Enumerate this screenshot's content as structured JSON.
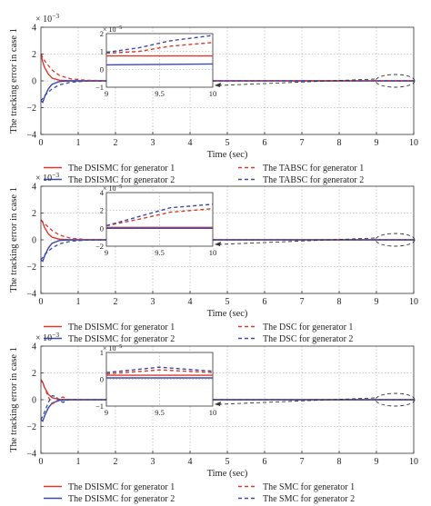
{
  "figure": {
    "ylabel": "The tracking error in case 1",
    "xlabel": "Time (sec)",
    "exponent_base": "× 10",
    "exponent_power": "−3"
  },
  "colors": {
    "generator1": "#d63a2f",
    "generator2": "#3b4aa8",
    "comparison1": "#d63a2f",
    "comparison2": "#3b4aa8",
    "axis": "#333333",
    "grid": "#9a9a9a"
  },
  "chart_data": [
    {
      "type": "line",
      "title": "",
      "xlabel": "Time (sec)",
      "ylabel": "The tracking error in case 1",
      "xlim": [
        0,
        10
      ],
      "ylim": [
        -4,
        4
      ],
      "y_scale_note": "× 10^−3",
      "xticks": [
        "0",
        "1",
        "2",
        "3",
        "4",
        "5",
        "6",
        "7",
        "8",
        "9",
        "10"
      ],
      "yticks": [
        "−4",
        "−2",
        "0",
        "2",
        "4"
      ],
      "grid": true,
      "legend": [
        "The DSISMC for generator 1",
        "The DSISMC for generator 2",
        "The TABSC for generator 1",
        "The TABSC for generator 2"
      ],
      "series": [
        {
          "name": "The DSISMC for generator 1",
          "style": "solid",
          "color": "generator1",
          "points": [
            [
              0,
              2.0
            ],
            [
              0.05,
              1.4
            ],
            [
              0.1,
              1.0
            ],
            [
              0.2,
              0.5
            ],
            [
              0.3,
              0.2
            ],
            [
              0.5,
              0.05
            ],
            [
              0.8,
              0.0
            ],
            [
              10,
              0.0
            ]
          ]
        },
        {
          "name": "The DSISMC for generator 2",
          "style": "solid",
          "color": "generator2",
          "points": [
            [
              0,
              -1.5
            ],
            [
              0.05,
              -1.6
            ],
            [
              0.1,
              -1.2
            ],
            [
              0.2,
              -0.6
            ],
            [
              0.3,
              -0.25
            ],
            [
              0.5,
              -0.05
            ],
            [
              0.8,
              0.0
            ],
            [
              10,
              0.0
            ]
          ]
        },
        {
          "name": "The TABSC for generator 1",
          "style": "dashed",
          "color": "comparison1",
          "points": [
            [
              0,
              2.0
            ],
            [
              0.1,
              1.5
            ],
            [
              0.3,
              0.8
            ],
            [
              0.5,
              0.4
            ],
            [
              0.8,
              0.15
            ],
            [
              1.2,
              0.05
            ],
            [
              2,
              0.0
            ],
            [
              10,
              0.0
            ]
          ]
        },
        {
          "name": "The TABSC for generator 2",
          "style": "dashed",
          "color": "comparison2",
          "points": [
            [
              0,
              -1.5
            ],
            [
              0.1,
              -1.1
            ],
            [
              0.3,
              -0.6
            ],
            [
              0.5,
              -0.3
            ],
            [
              0.8,
              -0.1
            ],
            [
              1.2,
              -0.03
            ],
            [
              2,
              0.0
            ],
            [
              10,
              0.0
            ]
          ]
        }
      ],
      "inset": {
        "xlim": [
          9,
          10
        ],
        "ylim": [
          -1,
          2
        ],
        "xticks": [
          "9",
          "9.5",
          "10"
        ],
        "yticks": [
          "−1",
          "0",
          "1",
          "2"
        ],
        "y_scale_note": "× 10^−5",
        "series": [
          {
            "name": "The DSISMC for generator 1",
            "style": "solid",
            "color": "generator1",
            "points": [
              [
                9,
                0.75
              ],
              [
                10,
                0.75
              ]
            ]
          },
          {
            "name": "The DSISMC for generator 2",
            "style": "solid",
            "color": "generator2",
            "points": [
              [
                9,
                0.25
              ],
              [
                10,
                0.3
              ]
            ]
          },
          {
            "name": "The TABSC for generator 1",
            "style": "dashed",
            "color": "comparison1",
            "points": [
              [
                9,
                0.9
              ],
              [
                9.3,
                1.0
              ],
              [
                9.6,
                1.3
              ],
              [
                10,
                1.5
              ]
            ]
          },
          {
            "name": "The TABSC for generator 2",
            "style": "dashed",
            "color": "comparison2",
            "points": [
              [
                9,
                0.95
              ],
              [
                9.3,
                1.2
              ],
              [
                9.6,
                1.6
              ],
              [
                10,
                1.9
              ]
            ]
          }
        ]
      }
    },
    {
      "type": "line",
      "title": "",
      "xlabel": "Time (sec)",
      "ylabel": "The tracking error in case 1",
      "xlim": [
        0,
        10
      ],
      "ylim": [
        -4,
        4
      ],
      "y_scale_note": "× 10^−3",
      "xticks": [
        "0",
        "1",
        "2",
        "3",
        "4",
        "5",
        "6",
        "7",
        "8",
        "9",
        "10"
      ],
      "yticks": [
        "−4",
        "−2",
        "0",
        "2",
        "4"
      ],
      "grid": true,
      "legend": [
        "The DSISMC for generator 1",
        "The DSISMC for generator 2",
        "The DSC for generator 1",
        "The DSC for generator 2"
      ],
      "series": [
        {
          "name": "The DSISMC for generator 1",
          "style": "solid",
          "color": "generator1",
          "points": [
            [
              0,
              1.5
            ],
            [
              0.05,
              1.3
            ],
            [
              0.1,
              0.9
            ],
            [
              0.2,
              0.45
            ],
            [
              0.3,
              0.2
            ],
            [
              0.5,
              0.05
            ],
            [
              0.8,
              0.0
            ],
            [
              10,
              0.0
            ]
          ]
        },
        {
          "name": "The DSISMC for generator 2",
          "style": "solid",
          "color": "generator2",
          "points": [
            [
              0,
              -1.5
            ],
            [
              0.05,
              -1.6
            ],
            [
              0.1,
              -1.2
            ],
            [
              0.2,
              -0.6
            ],
            [
              0.3,
              -0.25
            ],
            [
              0.5,
              -0.05
            ],
            [
              0.8,
              0.0
            ],
            [
              10,
              0.0
            ]
          ]
        },
        {
          "name": "The DSC for generator 1",
          "style": "dashed",
          "color": "comparison1",
          "points": [
            [
              0,
              1.5
            ],
            [
              0.1,
              1.2
            ],
            [
              0.3,
              0.7
            ],
            [
              0.5,
              0.35
            ],
            [
              0.8,
              0.12
            ],
            [
              1.2,
              0.03
            ],
            [
              2,
              0.0
            ],
            [
              10,
              0.0
            ]
          ]
        },
        {
          "name": "The DSC for generator 2",
          "style": "dashed",
          "color": "comparison2",
          "points": [
            [
              0,
              -1.5
            ],
            [
              0.1,
              -1.1
            ],
            [
              0.3,
              -0.6
            ],
            [
              0.5,
              -0.3
            ],
            [
              0.8,
              -0.1
            ],
            [
              1.2,
              -0.03
            ],
            [
              2,
              0.0
            ],
            [
              10,
              0.0
            ]
          ]
        }
      ],
      "inset": {
        "xlim": [
          9,
          10
        ],
        "ylim": [
          -2,
          4
        ],
        "xticks": [
          "9",
          "9.5",
          "10"
        ],
        "yticks": [
          "−2",
          "0",
          "2",
          "4"
        ],
        "y_scale_note": "× 10^−5",
        "series": [
          {
            "name": "The DSISMC for generator 1",
            "style": "solid",
            "color": "generator1",
            "points": [
              [
                9,
                0.1
              ],
              [
                10,
                0.1
              ]
            ]
          },
          {
            "name": "The DSISMC for generator 2",
            "style": "solid",
            "color": "generator2",
            "points": [
              [
                9,
                0.0
              ],
              [
                10,
                0.0
              ]
            ]
          },
          {
            "name": "The DSC for generator 1",
            "style": "dashed",
            "color": "comparison1",
            "points": [
              [
                9,
                0.3
              ],
              [
                9.3,
                1.0
              ],
              [
                9.6,
                1.8
              ],
              [
                10,
                2.2
              ]
            ]
          },
          {
            "name": "The DSC for generator 2",
            "style": "dashed",
            "color": "comparison2",
            "points": [
              [
                9,
                0.3
              ],
              [
                9.3,
                1.3
              ],
              [
                9.6,
                2.3
              ],
              [
                10,
                2.7
              ]
            ]
          }
        ]
      }
    },
    {
      "type": "line",
      "title": "",
      "xlabel": "Time (sec)",
      "ylabel": "The tracking error in case 1",
      "xlim": [
        0,
        10
      ],
      "ylim": [
        -4,
        4
      ],
      "y_scale_note": "× 10^−3",
      "xticks": [
        "0",
        "1",
        "2",
        "3",
        "4",
        "5",
        "6",
        "7",
        "8",
        "9",
        "10"
      ],
      "yticks": [
        "−4",
        "−2",
        "0",
        "2",
        "4"
      ],
      "grid": true,
      "legend": [
        "The DSISMC for generator 1",
        "The DSISMC for generator 2",
        "The SMC for generator 1",
        "The SMC for generator 2"
      ],
      "series": [
        {
          "name": "The DSISMC for generator 1",
          "style": "solid",
          "color": "generator1",
          "points": [
            [
              0,
              1.5
            ],
            [
              0.05,
              1.3
            ],
            [
              0.1,
              0.9
            ],
            [
              0.2,
              0.4
            ],
            [
              0.3,
              0.15
            ],
            [
              0.5,
              0.03
            ],
            [
              0.8,
              0.0
            ],
            [
              10,
              0.0
            ]
          ]
        },
        {
          "name": "The DSISMC for generator 2",
          "style": "solid",
          "color": "generator2",
          "points": [
            [
              0,
              -1.5
            ],
            [
              0.05,
              -1.6
            ],
            [
              0.1,
              -1.2
            ],
            [
              0.2,
              -0.6
            ],
            [
              0.3,
              -0.25
            ],
            [
              0.5,
              -0.05
            ],
            [
              0.8,
              0.0
            ],
            [
              10,
              0.0
            ]
          ]
        },
        {
          "name": "The SMC for generator 1",
          "style": "dashed",
          "color": "comparison1",
          "points": [
            [
              0,
              1.5
            ],
            [
              0.1,
              0.9
            ],
            [
              0.2,
              0.2
            ],
            [
              0.3,
              -0.3
            ],
            [
              0.4,
              -0.2
            ],
            [
              0.5,
              0.15
            ],
            [
              0.6,
              0.2
            ],
            [
              0.7,
              0.05
            ],
            [
              0.8,
              -0.05
            ],
            [
              1.0,
              0.0
            ],
            [
              10,
              0.0
            ]
          ]
        },
        {
          "name": "The SMC for generator 2",
          "style": "dashed",
          "color": "comparison2",
          "points": [
            [
              0,
              -1.5
            ],
            [
              0.1,
              -0.9
            ],
            [
              0.2,
              -0.2
            ],
            [
              0.3,
              0.3
            ],
            [
              0.4,
              0.25
            ],
            [
              0.5,
              -0.1
            ],
            [
              0.6,
              -0.2
            ],
            [
              0.7,
              -0.05
            ],
            [
              0.8,
              0.05
            ],
            [
              1.0,
              0.0
            ],
            [
              10,
              0.0
            ]
          ]
        }
      ],
      "inset": {
        "xlim": [
          9,
          10
        ],
        "ylim": [
          -1,
          1
        ],
        "xticks": [
          "9",
          "9.5",
          "10"
        ],
        "yticks": [
          "−1",
          "0",
          "1"
        ],
        "y_scale_note": "× 10^−5",
        "series": [
          {
            "name": "The DSISMC for generator 1",
            "style": "solid",
            "color": "generator1",
            "points": [
              [
                9,
                0.15
              ],
              [
                10,
                0.15
              ]
            ]
          },
          {
            "name": "The DSISMC for generator 2",
            "style": "solid",
            "color": "generator2",
            "points": [
              [
                9,
                0.05
              ],
              [
                10,
                0.05
              ]
            ]
          },
          {
            "name": "The SMC for generator 1",
            "style": "dashed",
            "color": "comparison1",
            "points": [
              [
                9,
                0.2
              ],
              [
                9.5,
                0.35
              ],
              [
                10,
                0.25
              ]
            ]
          },
          {
            "name": "The SMC for generator 2",
            "style": "dashed",
            "color": "comparison2",
            "points": [
              [
                9,
                0.25
              ],
              [
                9.5,
                0.45
              ],
              [
                10,
                0.3
              ]
            ]
          }
        ]
      }
    }
  ]
}
